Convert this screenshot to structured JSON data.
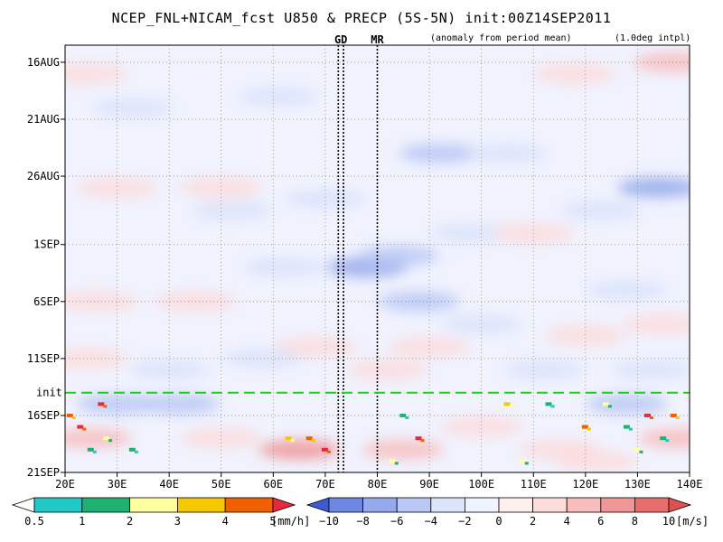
{
  "header": {
    "title": "NCEP_FNL+NICAM_fcst U850 & PRECP (5S-5N) init:00Z14SEP2011",
    "note_left": "(anomaly from period mean)",
    "note_right": "(1.0deg intpl)"
  },
  "chart_data": {
    "type": "heatmap",
    "title": "NCEP_FNL+NICAM_fcst U850 & PRECP (5S-5N) init:00Z14SEP2011",
    "x_ticks": [
      "20E",
      "30E",
      "40E",
      "50E",
      "60E",
      "70E",
      "80E",
      "90E",
      "100E",
      "110E",
      "120E",
      "130E",
      "140E"
    ],
    "x_range": [
      20,
      140
    ],
    "y_ticks": [
      "16AUG",
      "21AUG",
      "26AUG",
      "1SEP",
      "6SEP",
      "11SEP",
      "16SEP",
      "21SEP"
    ],
    "y_tick_days": [
      0,
      5,
      10,
      16,
      21,
      26,
      31,
      36
    ],
    "y_range_days": [
      -1.5,
      36
    ],
    "grid": true,
    "init_line": {
      "label": "init",
      "day": 29,
      "color": "#22cc22"
    },
    "region_lines": [
      {
        "label": "GD",
        "lon": 72.5
      },
      {
        "label": "GD",
        "lon": 73.5
      },
      {
        "label": "MR",
        "lon": 80
      }
    ],
    "region_labels": [
      {
        "text": "GD",
        "lon": 73
      },
      {
        "text": "MR",
        "lon": 80
      }
    ],
    "precip_colorbar": {
      "levels": [
        "0.5",
        "1",
        "2",
        "3",
        "4",
        "5"
      ],
      "unit": "[mm/h]",
      "colors": [
        "#ffffff",
        "#22c8c8",
        "#20b070",
        "#ffffa0",
        "#f5c800",
        "#f06000",
        "#e8283c"
      ]
    },
    "u850_colorbar": {
      "levels": [
        "−10",
        "−8",
        "−6",
        "−4",
        "−2",
        "0",
        "2",
        "4",
        "6",
        "8",
        "10"
      ],
      "unit": "[m/s]",
      "colors": [
        "#3c5ad2",
        "#6e87e1",
        "#96aaeb",
        "#b9c8f5",
        "#dce4fa",
        "#f0f2fe",
        "#fff0f0",
        "#fddcdc",
        "#f8bebe",
        "#f09696",
        "#e86e6e",
        "#e05050"
      ]
    },
    "u850_anomaly_blobs": [
      {
        "lon": 33,
        "day": 4,
        "v": -3
      },
      {
        "lon": 45,
        "day": 7,
        "v": -2
      },
      {
        "lon": 61,
        "day": 3,
        "v": -3
      },
      {
        "lon": 92,
        "day": 8,
        "v": -6
      },
      {
        "lon": 105,
        "day": 8,
        "v": -3
      },
      {
        "lon": 75,
        "day": 2,
        "v": -2
      },
      {
        "lon": 134,
        "day": 11,
        "v": -7
      },
      {
        "lon": 123,
        "day": 13,
        "v": -4
      },
      {
        "lon": 137,
        "day": 0,
        "v": 4
      },
      {
        "lon": 118,
        "day": 1,
        "v": 3
      },
      {
        "lon": 24,
        "day": 1,
        "v": 3
      },
      {
        "lon": 30,
        "day": 11,
        "v": 3
      },
      {
        "lon": 50,
        "day": 11,
        "v": 2
      },
      {
        "lon": 98,
        "day": 15,
        "v": -3
      },
      {
        "lon": 70,
        "day": 12,
        "v": -4
      },
      {
        "lon": 52,
        "day": 13,
        "v": -3
      },
      {
        "lon": 78,
        "day": 18,
        "v": -8
      },
      {
        "lon": 84,
        "day": 17,
        "v": -6
      },
      {
        "lon": 88,
        "day": 21,
        "v": -6
      },
      {
        "lon": 62,
        "day": 18,
        "v": -3
      },
      {
        "lon": 100,
        "day": 23,
        "v": -3
      },
      {
        "lon": 128,
        "day": 20,
        "v": -3
      },
      {
        "lon": 110,
        "day": 15,
        "v": 3
      },
      {
        "lon": 120,
        "day": 24,
        "v": 3
      },
      {
        "lon": 26,
        "day": 21,
        "v": 3
      },
      {
        "lon": 24,
        "day": 26,
        "v": 3
      },
      {
        "lon": 45,
        "day": 21,
        "v": 2
      },
      {
        "lon": 68,
        "day": 25,
        "v": 3
      },
      {
        "lon": 90,
        "day": 25,
        "v": 3
      },
      {
        "lon": 135,
        "day": 23,
        "v": 3
      },
      {
        "lon": 40,
        "day": 27,
        "v": -4
      },
      {
        "lon": 58,
        "day": 26,
        "v": -3
      },
      {
        "lon": 112,
        "day": 27,
        "v": -4
      },
      {
        "lon": 133,
        "day": 27,
        "v": -3
      },
      {
        "lon": 82,
        "day": 27,
        "v": 2
      },
      {
        "lon": 30,
        "day": 30,
        "v": -6
      },
      {
        "lon": 42,
        "day": 30,
        "v": -5
      },
      {
        "lon": 128,
        "day": 30,
        "v": -6
      },
      {
        "lon": 75,
        "day": 30,
        "v": -2
      },
      {
        "lon": 100,
        "day": 32,
        "v": 3
      },
      {
        "lon": 25,
        "day": 33,
        "v": 4
      },
      {
        "lon": 50,
        "day": 33,
        "v": 2
      },
      {
        "lon": 65,
        "day": 34,
        "v": 7
      },
      {
        "lon": 85,
        "day": 34,
        "v": 4
      },
      {
        "lon": 115,
        "day": 34,
        "v": 3
      },
      {
        "lon": 138,
        "day": 33,
        "v": 5
      },
      {
        "lon": 122,
        "day": 35,
        "v": 2
      }
    ],
    "precip_events": [
      {
        "lon": 21,
        "day": 31,
        "v": 4
      },
      {
        "lon": 23,
        "day": 32,
        "v": 5
      },
      {
        "lon": 27,
        "day": 30,
        "v": 5
      },
      {
        "lon": 28,
        "day": 33,
        "v": 2
      },
      {
        "lon": 33,
        "day": 34,
        "v": 1
      },
      {
        "lon": 25,
        "day": 34,
        "v": 1
      },
      {
        "lon": 63,
        "day": 33,
        "v": 3
      },
      {
        "lon": 67,
        "day": 33,
        "v": 4
      },
      {
        "lon": 70,
        "day": 34,
        "v": 5
      },
      {
        "lon": 83,
        "day": 35,
        "v": 2
      },
      {
        "lon": 85,
        "day": 31,
        "v": 1
      },
      {
        "lon": 88,
        "day": 33,
        "v": 5
      },
      {
        "lon": 105,
        "day": 30,
        "v": 3
      },
      {
        "lon": 108,
        "day": 35,
        "v": 2
      },
      {
        "lon": 113,
        "day": 30,
        "v": 1
      },
      {
        "lon": 120,
        "day": 32,
        "v": 4
      },
      {
        "lon": 124,
        "day": 30,
        "v": 2
      },
      {
        "lon": 128,
        "day": 32,
        "v": 1
      },
      {
        "lon": 132,
        "day": 31,
        "v": 5
      },
      {
        "lon": 137,
        "day": 31,
        "v": 4
      },
      {
        "lon": 135,
        "day": 33,
        "v": 1
      },
      {
        "lon": 130,
        "day": 34,
        "v": 2
      }
    ]
  }
}
